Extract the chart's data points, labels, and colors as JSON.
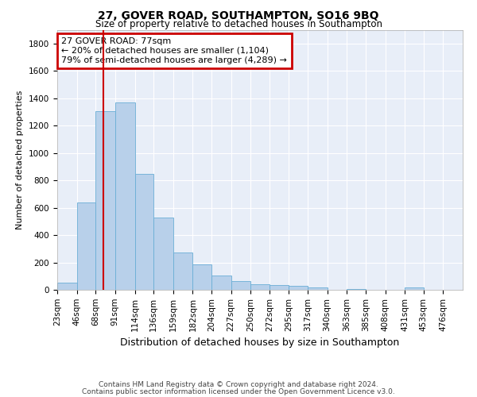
{
  "title1": "27, GOVER ROAD, SOUTHAMPTON, SO16 9BQ",
  "title2": "Size of property relative to detached houses in Southampton",
  "xlabel": "Distribution of detached houses by size in Southampton",
  "ylabel": "Number of detached properties",
  "footer1": "Contains HM Land Registry data © Crown copyright and database right 2024.",
  "footer2": "Contains public sector information licensed under the Open Government Licence v3.0.",
  "annotation_title": "27 GOVER ROAD: 77sqm",
  "annotation_line1": "← 20% of detached houses are smaller (1,104)",
  "annotation_line2": "79% of semi-detached houses are larger (4,289) →",
  "bar_color": "#b8d0ea",
  "bar_edge_color": "#6aaed6",
  "red_line_x": 77,
  "categories": [
    "23sqm",
    "46sqm",
    "68sqm",
    "91sqm",
    "114sqm",
    "136sqm",
    "159sqm",
    "182sqm",
    "204sqm",
    "227sqm",
    "250sqm",
    "272sqm",
    "295sqm",
    "317sqm",
    "340sqm",
    "363sqm",
    "385sqm",
    "408sqm",
    "431sqm",
    "453sqm",
    "476sqm"
  ],
  "bin_edges": [
    23,
    46,
    68,
    91,
    114,
    136,
    159,
    182,
    204,
    227,
    250,
    272,
    295,
    317,
    340,
    363,
    385,
    408,
    431,
    453,
    476,
    499
  ],
  "values": [
    50,
    638,
    1305,
    1370,
    848,
    530,
    275,
    185,
    103,
    65,
    38,
    35,
    28,
    15,
    0,
    5,
    0,
    0,
    15,
    0,
    0
  ],
  "ylim": [
    0,
    1900
  ],
  "yticks": [
    0,
    200,
    400,
    600,
    800,
    1000,
    1200,
    1400,
    1600,
    1800
  ],
  "bg_color": "#e8eef8",
  "fig_bg_color": "#ffffff",
  "grid_color": "#ffffff",
  "annotation_box_facecolor": "#ffffff",
  "annotation_box_edgecolor": "#cc0000",
  "red_line_color": "#cc0000",
  "title1_fontsize": 10,
  "title2_fontsize": 8.5,
  "ylabel_fontsize": 8,
  "xlabel_fontsize": 9,
  "tick_fontsize": 7.5,
  "footer_fontsize": 6.5,
  "annotation_fontsize": 8
}
